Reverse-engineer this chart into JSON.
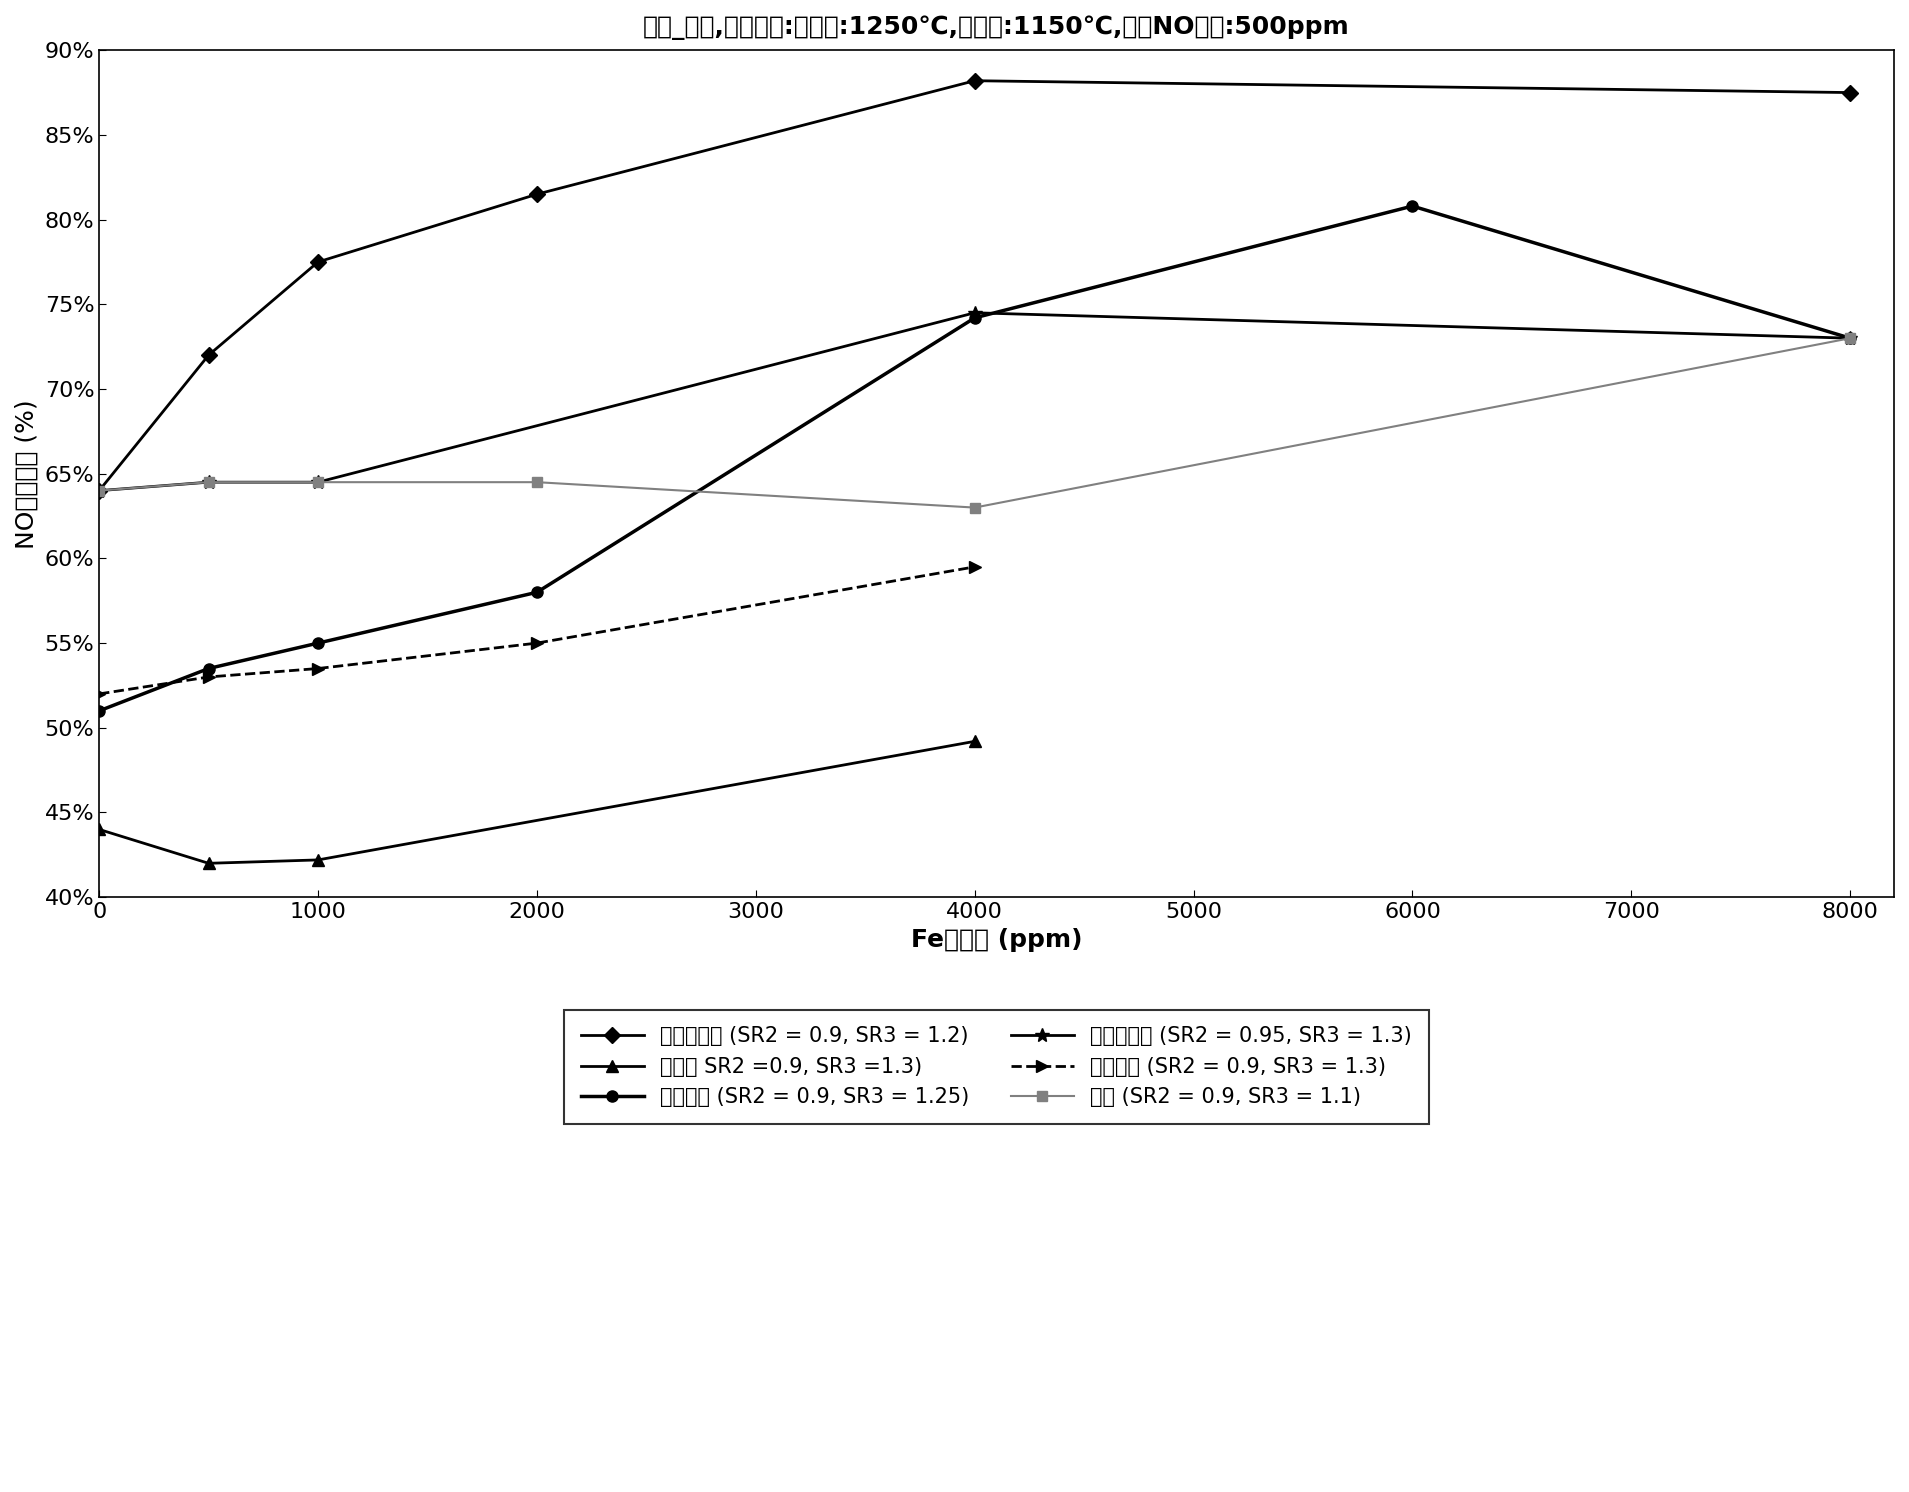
{
  "title": "再燃_燃炬,炉膛温度:再燃段:1250℃,燃炬段:1150℃,进口NO浓度:500ppm",
  "xlabel": "Fe的浓度 (ppm)",
  "ylabel": "NO脱除效率 (%)",
  "xlim": [
    0,
    8200
  ],
  "ylim": [
    0.4,
    0.9
  ],
  "xticks": [
    0,
    1000,
    2000,
    3000,
    4000,
    5000,
    6000,
    7000,
    8000
  ],
  "yticks": [
    0.4,
    0.45,
    0.5,
    0.55,
    0.6,
    0.65,
    0.7,
    0.75,
    0.8,
    0.85,
    0.9
  ],
  "series": [
    {
      "label": "废轮胎胶粉 (SR2 = 0.9, SR3 = 1.2)",
      "x": [
        0,
        500,
        1000,
        2000,
        4000,
        8000
      ],
      "y": [
        0.64,
        0.72,
        0.775,
        0.815,
        0.882,
        0.875
      ],
      "color": "#000000",
      "linestyle": "-",
      "marker": "D",
      "markersize": 8,
      "linewidth": 2
    },
    {
      "label": "松树皮 SR2 =0.9, SR3 =1.3)",
      "x": [
        0,
        500,
        1000,
        4000
      ],
      "y": [
        0.44,
        0.42,
        0.422,
        0.492
      ],
      "color": "#000000",
      "linestyle": "-",
      "marker": "^",
      "markersize": 8,
      "linewidth": 2
    },
    {
      "label": "谷物秸秆 (SR2 = 0.9, SR3 = 1.25)",
      "x": [
        0,
        500,
        1000,
        2000,
        4000,
        6000,
        8000
      ],
      "y": [
        0.51,
        0.535,
        0.55,
        0.58,
        0.742,
        0.808,
        0.73
      ],
      "color": "#000000",
      "linestyle": "-",
      "marker": "o",
      "markersize": 8,
      "linewidth": 2.5
    },
    {
      "label": "造纸厂污泥 (SR2 = 0.95, SR3 = 1.3)",
      "x": [
        0,
        500,
        1000,
        4000,
        8000
      ],
      "y": [
        0.64,
        0.645,
        0.645,
        0.745,
        0.73
      ],
      "color": "#000000",
      "linestyle": "-",
      "marker": "*",
      "markersize": 10,
      "linewidth": 2
    },
    {
      "label": "松木锯末 (SR2 = 0.9, SR3 = 1.3)",
      "x": [
        0,
        500,
        1000,
        2000,
        4000
      ],
      "y": [
        0.52,
        0.53,
        0.535,
        0.55,
        0.595
      ],
      "color": "#000000",
      "linestyle": "--",
      "marker": ">",
      "markersize": 8,
      "linewidth": 2
    },
    {
      "label": "甲烷 (SR2 = 0.9, SR3 = 1.1)",
      "x": [
        0,
        500,
        1000,
        2000,
        4000,
        8000
      ],
      "y": [
        0.64,
        0.645,
        0.645,
        0.645,
        0.63,
        0.73
      ],
      "color": "#808080",
      "linestyle": "-",
      "marker": "s",
      "markersize": 7,
      "linewidth": 1.5
    }
  ],
  "legend_labels": [
    "废轮胎胶粉 (SR2 = 0.9, SR3 = 1.2)",
    "松树皮 SR2 =0.9, SR3 =1.3)",
    "谷物秸秆 (SR2 = 0.9, SR3 = 1.25)",
    "造纸厂污泥 (SR2 = 0.95, SR3 = 1.3)",
    "松木锯末 (SR2 = 0.9, SR3 = 1.3)",
    "甲烷 (SR2 = 0.9, SR3 = 1.1)"
  ]
}
